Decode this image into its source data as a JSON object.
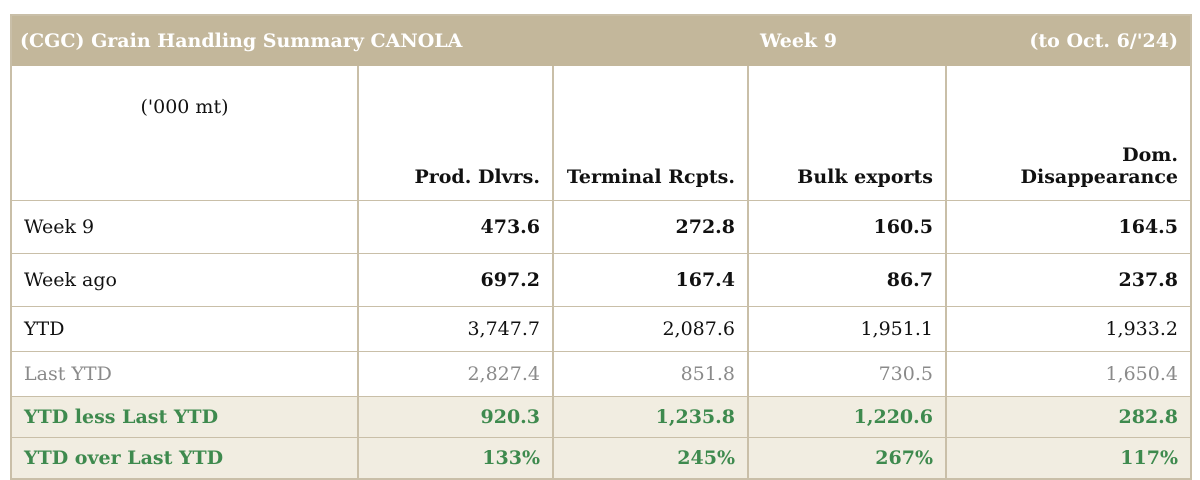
{
  "title": {
    "left": "(CGC) Grain Handling Summary CANOLA",
    "center": "Week 9",
    "right": "(to Oct. 6/'24)"
  },
  "table": {
    "unit": "('000 mt)",
    "columns": [
      "Prod. Dlvrs.",
      "Terminal Rcpts.",
      "Bulk exports",
      "Dom. Disappearance"
    ],
    "rows": [
      {
        "label": "Week 9",
        "values": [
          "473.6",
          "272.8",
          "160.5",
          "164.5"
        ]
      },
      {
        "label": "Week ago",
        "values": [
          "697.2",
          "167.4",
          "86.7",
          "237.8"
        ]
      },
      {
        "label": "YTD",
        "values": [
          "3,747.7",
          "2,087.6",
          "1,951.1",
          "1,933.2"
        ]
      },
      {
        "label": "Last YTD",
        "values": [
          "2,827.4",
          "851.8",
          "730.5",
          "1,650.4"
        ]
      },
      {
        "label": "YTD less Last YTD",
        "values": [
          "920.3",
          "1,235.8",
          "1,220.6",
          "282.8"
        ]
      },
      {
        "label": "YTD over Last YTD",
        "values": [
          "133%",
          "245%",
          "267%",
          "117%"
        ]
      }
    ]
  },
  "colors": {
    "header_band": "#c3b79b",
    "grid_line": "#c9bfa8",
    "green_text": "#3e8a4e",
    "green_row_bg": "#f1ede1",
    "muted_text": "#8a8a8a"
  }
}
